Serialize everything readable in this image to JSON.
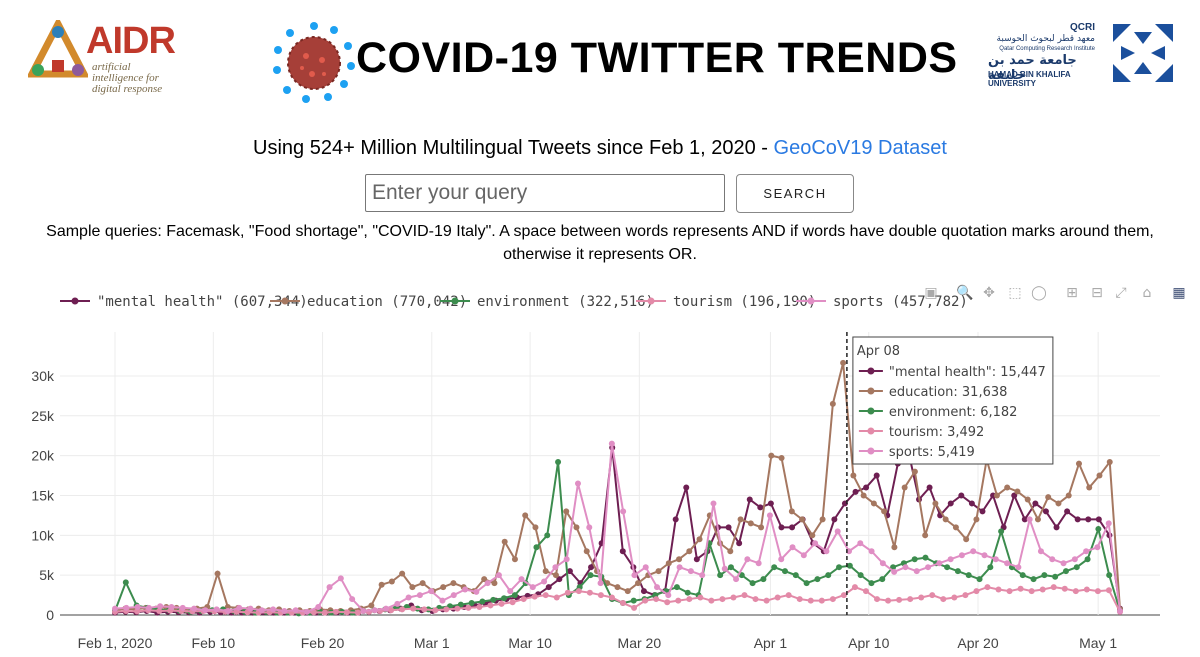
{
  "header": {
    "title": "COVID-19 TWITTER TRENDS",
    "aidr_logo_text": "AIDR",
    "aidr_logo_sub": "artificial intelligence for digital response",
    "qcri_logo_text": "QCRI",
    "qcri_logo_ar": "معهد قطر لبحوث الحوسبة",
    "qcri_logo_en": "Qatar Computing Research Institute",
    "hbku_logo_ar": "جامعة حمد بن خليفة",
    "hbku_logo_en": "HAMAD BIN KHALIFA UNIVERSITY"
  },
  "subtitle": {
    "text": "Using 524+ Million Multilingual Tweets since Feb 1, 2020 - ",
    "link": "GeoCoV19 Dataset"
  },
  "search": {
    "placeholder": "Enter your query",
    "button_label": "SEARCH"
  },
  "samples_text": "Sample queries: Facemask, \"Food shortage\", \"COVID-19 Italy\". A space between words represents AND if words have double quotation marks around them, otherwise it represents OR.",
  "modebar": {
    "icons": [
      "camera-icon",
      "zoom-icon",
      "pan-icon",
      "box-select-icon",
      "lasso-icon",
      "zoom-in-icon",
      "zoom-out-icon",
      "autoscale-icon",
      "reset-axes-icon",
      "plotly-logo-icon"
    ]
  },
  "chart_data": {
    "type": "line",
    "x_start": "2020-02-01",
    "x_end": "2020-05-03",
    "x_ticks": [
      {
        "label": "Feb 1, 2020",
        "day": 0
      },
      {
        "label": "Feb 10",
        "day": 9
      },
      {
        "label": "Feb 20",
        "day": 19
      },
      {
        "label": "Mar 1",
        "day": 29
      },
      {
        "label": "Mar 10",
        "day": 38
      },
      {
        "label": "Mar 20",
        "day": 48
      },
      {
        "label": "Apr 1",
        "day": 60
      },
      {
        "label": "Apr 10",
        "day": 69
      },
      {
        "label": "Apr 20",
        "day": 79
      },
      {
        "label": "May 1",
        "day": 90
      }
    ],
    "y_ticks": [
      "0",
      "5k",
      "10k",
      "15k",
      "20k",
      "25k",
      "30k"
    ],
    "ylim": [
      0,
      32000
    ],
    "legend_position": "top",
    "series": [
      {
        "name": "\"mental health\" (607,344)",
        "color": "#6e1f52",
        "values": [
          300,
          400,
          350,
          500,
          300,
          400,
          350,
          300,
          300,
          400,
          350,
          300,
          300,
          300,
          350,
          300,
          300,
          300,
          350,
          300,
          400,
          350,
          300,
          300,
          400,
          500,
          600,
          800,
          1200,
          600,
          500,
          700,
          800,
          1000,
          1200,
          1500,
          1800,
          2000,
          2200,
          2400,
          2600,
          3500,
          4500,
          5500,
          4000,
          6000,
          9000,
          21000,
          8000,
          6000,
          3000,
          2500,
          3000,
          12000,
          16000,
          7000,
          8000,
          11000,
          11000,
          9000,
          14500,
          13500,
          14000,
          11000,
          11000,
          12000,
          9000,
          8000,
          12000,
          14000,
          15447,
          16000,
          17500,
          12500,
          19000,
          20500,
          14500,
          16000,
          12500,
          14000,
          15000,
          14000,
          13000,
          15000,
          11000,
          15000,
          12000,
          14000,
          13000,
          11000,
          13000,
          12000,
          12000,
          12000,
          10000,
          800
        ]
      },
      {
        "name": "education (770,042)",
        "color": "#a57760",
        "values": [
          600,
          800,
          700,
          900,
          800,
          1000,
          900,
          600,
          800,
          1000,
          5200,
          1000,
          900,
          700,
          800,
          600,
          700,
          500,
          600,
          500,
          700,
          600,
          500,
          600,
          800,
          1200,
          3800,
          4200,
          5200,
          3500,
          4000,
          3000,
          3500,
          4000,
          3500,
          3000,
          4500,
          4000,
          9200,
          7000,
          12500,
          11000,
          5500,
          5000,
          13000,
          11000,
          8000,
          5500,
          4000,
          3500,
          3000,
          4000,
          5000,
          5500,
          6500,
          7000,
          8000,
          9500,
          12500,
          9000,
          8000,
          12000,
          11500,
          11000,
          20000,
          19700,
          13000,
          12000,
          10000,
          12000,
          26500,
          31638,
          17500,
          15000,
          14000,
          13000,
          8500,
          16000,
          18000,
          10000,
          14000,
          12000,
          11000,
          9500,
          12000,
          19500,
          15000,
          16000,
          15500,
          14500,
          12000,
          14800,
          14000,
          15000,
          19000,
          16000,
          17500,
          19200,
          700
        ]
      },
      {
        "name": "environment (322,516)",
        "color": "#3c8c4e",
        "values": [
          500,
          4100,
          1200,
          900,
          700,
          600,
          500,
          400,
          500,
          600,
          700,
          500,
          400,
          300,
          400,
          300,
          300,
          200,
          300,
          400,
          300,
          400,
          300,
          500,
          600,
          700,
          900,
          1000,
          800,
          700,
          900,
          1100,
          1300,
          1500,
          1700,
          1900,
          2100,
          2500,
          4000,
          8500,
          10000,
          19200,
          2500,
          3500,
          5000,
          4800,
          2000,
          1500,
          1800,
          2000,
          2500,
          3000,
          3500,
          2800,
          2500,
          9000,
          5000,
          6000,
          5000,
          4000,
          4500,
          6000,
          5500,
          5000,
          4000,
          4500,
          5000,
          6000,
          6182,
          5000,
          4000,
          4500,
          6000,
          6500,
          7000,
          7200,
          6500,
          6000,
          5500,
          5000,
          4500,
          6000,
          10500,
          6000,
          5000,
          4500,
          5000,
          4800,
          5500,
          6000,
          7000,
          10800,
          5000,
          500
        ]
      },
      {
        "name": "tourism (196,190)",
        "color": "#e38aa8",
        "values": [
          400,
          500,
          450,
          600,
          500,
          550,
          500,
          450,
          500,
          450,
          400,
          400,
          350,
          300,
          350,
          300,
          300,
          300,
          350,
          300,
          400,
          350,
          300,
          400,
          500,
          600,
          700,
          800,
          700,
          600,
          700,
          800,
          900,
          1000,
          1200,
          1400,
          1600,
          2000,
          2300,
          2500,
          2200,
          2800,
          3000,
          2800,
          2500,
          2200,
          1500,
          900,
          1800,
          2000,
          1600,
          1800,
          2000,
          2200,
          1800,
          2000,
          2200,
          2500,
          2000,
          1800,
          2200,
          2500,
          2000,
          1800,
          1800,
          2000,
          2500,
          3492,
          3000,
          2000,
          1800,
          1900,
          2000,
          2200,
          2500,
          2000,
          2200,
          2500,
          3000,
          3500,
          3200,
          3000,
          3300,
          3000,
          3200,
          3500,
          3300,
          3000,
          3200,
          3000,
          3100,
          400
        ]
      },
      {
        "name": "sports (457,782)",
        "color": "#e08ec4",
        "values": [
          800,
          900,
          1000,
          900,
          1100,
          1000,
          900,
          800,
          600,
          700,
          500,
          900,
          800,
          600,
          700,
          500,
          600,
          400,
          1000,
          3500,
          4600,
          2000,
          500,
          600,
          800,
          1400,
          2200,
          2500,
          3000,
          1800,
          2500,
          3200,
          2900,
          4000,
          5000,
          3000,
          4500,
          3500,
          4200,
          6000,
          7000,
          16500,
          11000,
          4000,
          21500,
          13000,
          5000,
          6000,
          3500,
          2500,
          6000,
          5500,
          5000,
          14000,
          5800,
          4500,
          7000,
          6500,
          12500,
          7000,
          8500,
          7500,
          9000,
          8000,
          10500,
          8000,
          9000,
          8000,
          6500,
          5419,
          6000,
          5500,
          6000,
          6500,
          7000,
          7500,
          8000,
          7500,
          7000,
          6500,
          6000,
          12000,
          8000,
          7000,
          6500,
          7000,
          8000,
          8500,
          11500,
          500
        ]
      }
    ],
    "hover": {
      "date": "Apr 08",
      "day": 67,
      "entries": [
        "\"mental health\": 15,447",
        "education: 31,638",
        "environment: 6,182",
        "tourism: 3,492",
        "sports: 5,419"
      ]
    }
  }
}
